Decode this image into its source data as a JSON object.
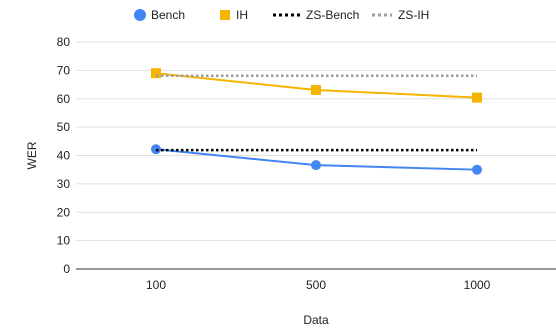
{
  "chart_data": {
    "type": "line",
    "xlabel": "Data",
    "ylabel": "WER",
    "categories": [
      "100",
      "500",
      "1000"
    ],
    "ylim": [
      0,
      80
    ],
    "yticks": [
      0,
      10,
      20,
      30,
      40,
      50,
      60,
      70,
      80
    ],
    "grid": true,
    "legend_position": "top",
    "series": [
      {
        "name": "Bench",
        "values": [
          42.2,
          36.6,
          35.0
        ],
        "color": "#4285F4",
        "style": "solid",
        "marker": "circle"
      },
      {
        "name": "IH",
        "values": [
          69.0,
          63.1,
          60.4
        ],
        "color": "#F4B400",
        "style": "solid",
        "marker": "square"
      },
      {
        "name": "ZS-Bench",
        "values": [
          41.9,
          41.9,
          41.9
        ],
        "color": "#000000",
        "style": "dotted",
        "marker": "none"
      },
      {
        "name": "ZS-IH",
        "values": [
          68.1,
          68.1,
          68.1
        ],
        "color": "#9E9E9E",
        "style": "dotted",
        "marker": "none"
      }
    ]
  }
}
